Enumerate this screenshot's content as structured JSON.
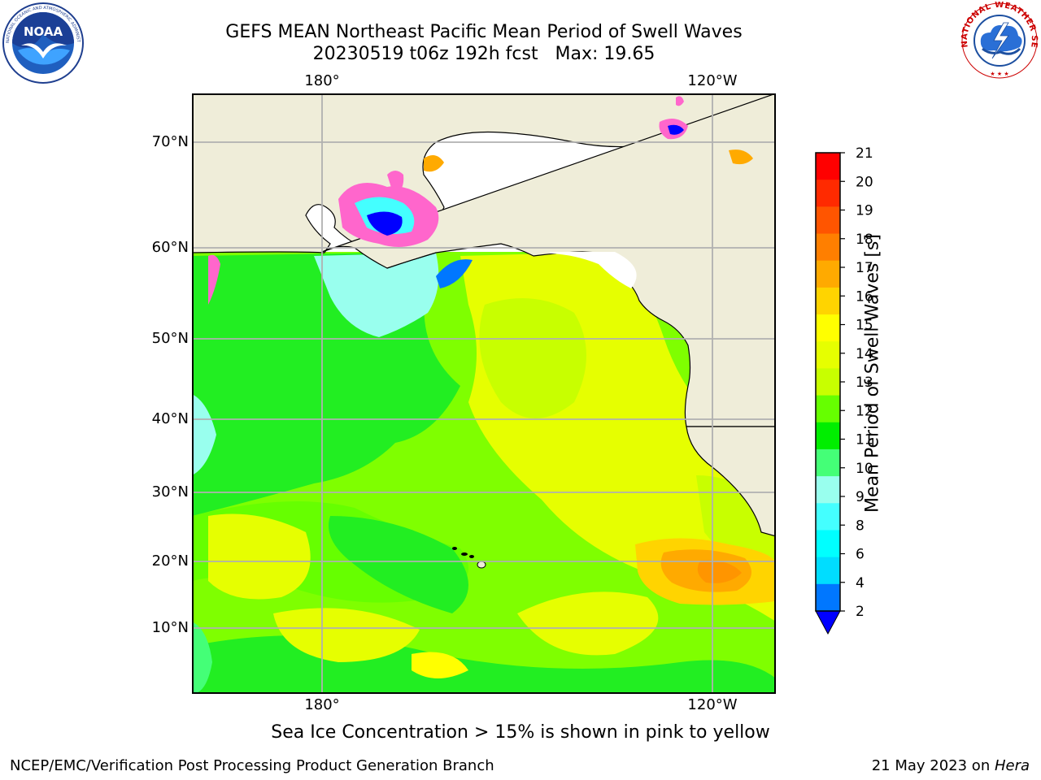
{
  "title": {
    "line1": "GEFS MEAN Northeast Pacific Mean Period of Swell Waves",
    "line2": "20230519 t06z 192h fcst   Max: 19.65"
  },
  "logos": {
    "left": {
      "icon": "noaa-logo-icon",
      "text": "NOAA",
      "ring_text": "NATIONAL OCEANIC AND ATMOSPHERIC ADMINISTRATION · U.S. DEPARTMENT OF COMMERCE"
    },
    "right": {
      "icon": "nws-logo-icon",
      "ring_text": "NATIONAL WEATHER SERVICE"
    }
  },
  "map": {
    "lon_labels_top": [
      "180°",
      "120°W"
    ],
    "lon_labels_bottom": [
      "180°",
      "120°W"
    ],
    "lat_labels": [
      "70°N",
      "60°N",
      "50°N",
      "40°N",
      "30°N",
      "20°N",
      "10°N"
    ],
    "land_color": "#efedd9",
    "grid_color": "#b0b0b0"
  },
  "colorbar": {
    "label": "Mean Period of Swell Waves [s]",
    "ticks": [
      "21",
      "20",
      "19",
      "18",
      "17",
      "16",
      "15",
      "14",
      "13",
      "12",
      "11",
      "10",
      "9",
      "8",
      "6",
      "4",
      "2"
    ],
    "colors_top_to_bottom": [
      "#ff0000",
      "#ff2a00",
      "#ff5500",
      "#ff7f00",
      "#ffaa00",
      "#ffd400",
      "#ffff00",
      "#e6ff00",
      "#c8ff00",
      "#66ff00",
      "#00ee00",
      "#44ff77",
      "#99ffee",
      "#44ffff",
      "#00ffff",
      "#00ddff",
      "#0077ff"
    ],
    "under_color": "#0000ff"
  },
  "notes": {
    "sea_ice": "Sea Ice Concentration > 15% is shown in pink to yellow",
    "credit": "NCEP/EMC/Verification Post Processing Product Generation Branch",
    "date": "21 May 2023 on ",
    "host": "Hera"
  }
}
